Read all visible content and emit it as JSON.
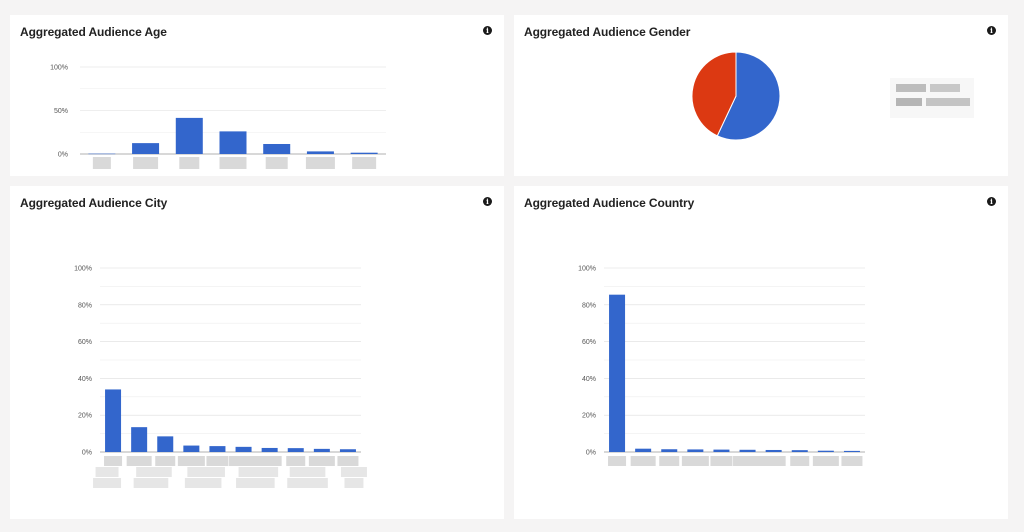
{
  "colors": {
    "bar": "#3366cc",
    "pie_female": "#dc3912",
    "pie_male": "#3366cc",
    "grid": "#dddddd",
    "redacted": "#d9d9d9"
  },
  "cards": {
    "age": {
      "title": "Aggregated Audience Age"
    },
    "gender": {
      "title": "Aggregated Audience Gender"
    },
    "city": {
      "title": "Aggregated Audience City"
    },
    "country": {
      "title": "Aggregated Audience Country"
    }
  },
  "chart_data": [
    {
      "id": "age",
      "type": "bar",
      "ylim": [
        0,
        100
      ],
      "yticks": [
        "0%",
        "50%",
        "100%"
      ],
      "ytick_values": [
        0,
        50,
        100
      ],
      "categories_redacted": true,
      "values": [
        0.4,
        12.5,
        41.5,
        26,
        11.5,
        3,
        1.5
      ],
      "grid": true
    },
    {
      "id": "gender",
      "type": "pie",
      "legend": "right",
      "slices": [
        {
          "value": 57,
          "color": "#3366cc"
        },
        {
          "value": 43,
          "color": "#dc3912"
        }
      ],
      "legend_redacted": true
    },
    {
      "id": "city",
      "type": "bar",
      "ylim": [
        0,
        100
      ],
      "yticks": [
        "0%",
        "20%",
        "40%",
        "60%",
        "80%",
        "100%"
      ],
      "ytick_values": [
        0,
        20,
        40,
        60,
        80,
        100
      ],
      "categories_redacted": true,
      "values": [
        34,
        13.5,
        8.5,
        3.5,
        3.2,
        2.8,
        2.2,
        2.1,
        1.7,
        1.5
      ],
      "grid": true
    },
    {
      "id": "country",
      "type": "bar",
      "ylim": [
        0,
        100
      ],
      "yticks": [
        "0%",
        "20%",
        "40%",
        "60%",
        "80%",
        "100%"
      ],
      "ytick_values": [
        0,
        20,
        40,
        60,
        80,
        100
      ],
      "categories_redacted": true,
      "values": [
        85.5,
        1.8,
        1.5,
        1.4,
        1.3,
        1.2,
        1.1,
        1.0,
        0.7,
        0.6
      ],
      "grid": true
    }
  ]
}
